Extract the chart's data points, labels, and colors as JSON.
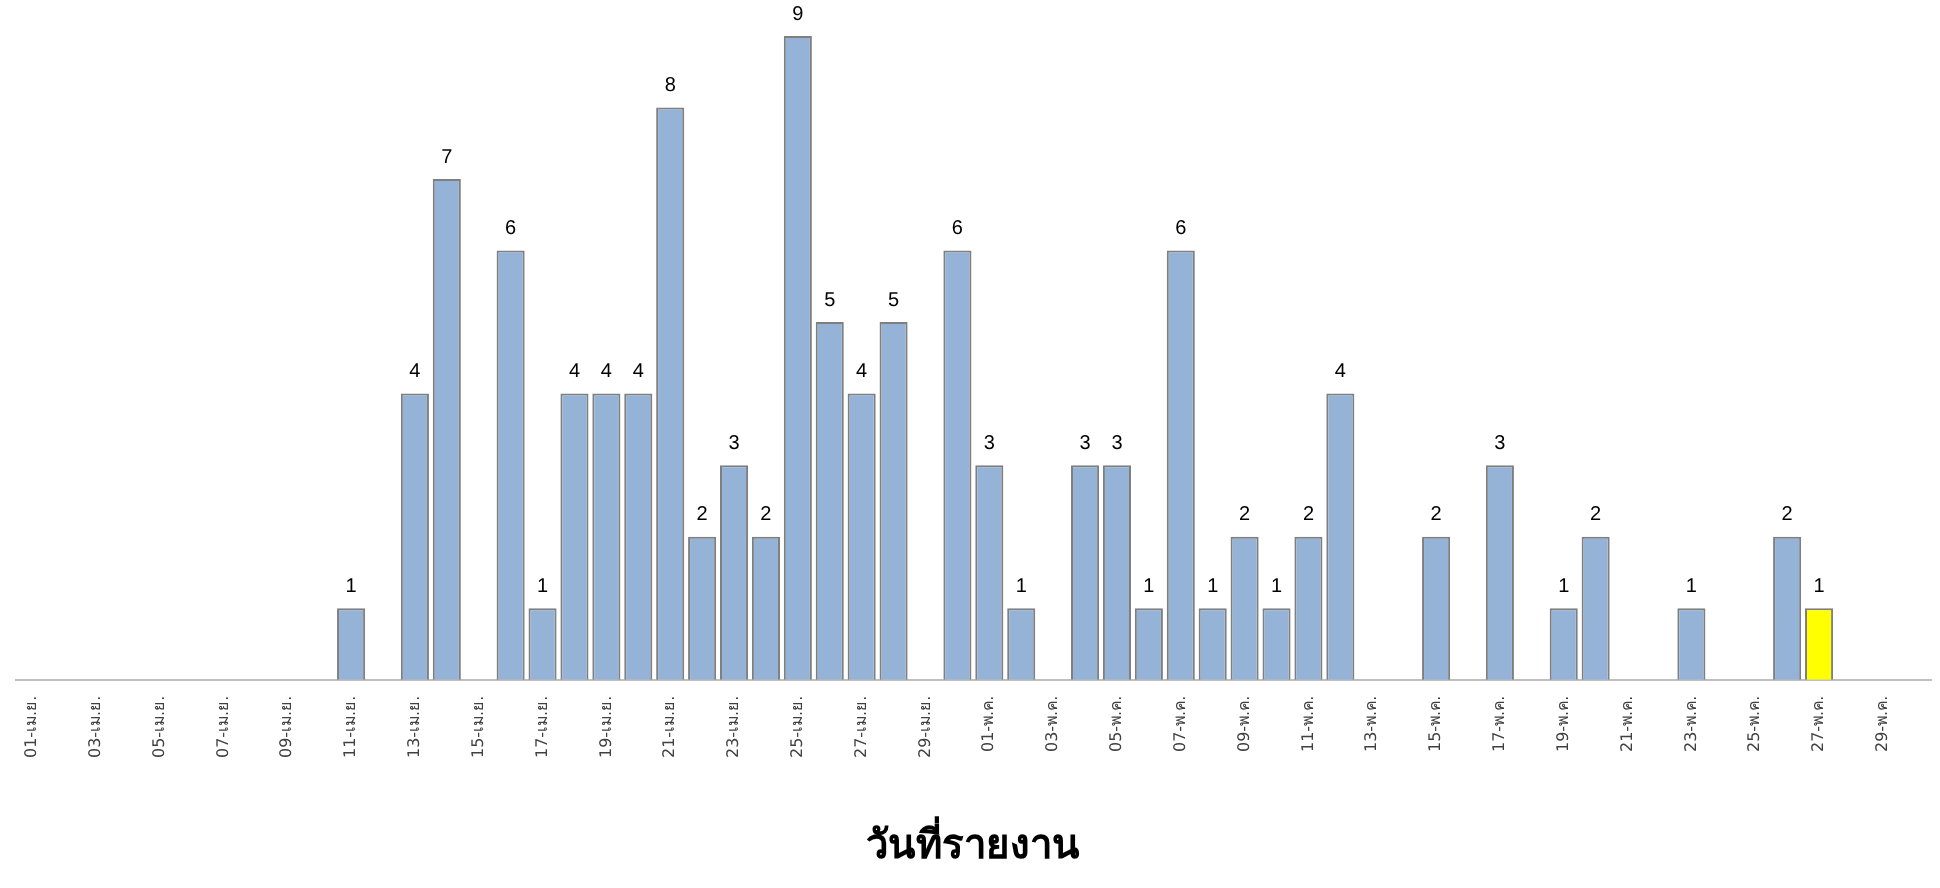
{
  "chart_data": {
    "type": "bar",
    "xlabel": "วันที่รายงาน",
    "categories": [
      "01-เม.ย.",
      null,
      "03-เม.ย.",
      null,
      "05-เม.ย.",
      null,
      "07-เม.ย.",
      null,
      "09-เม.ย.",
      null,
      "11-เม.ย.",
      null,
      "13-เม.ย.",
      null,
      "15-เม.ย.",
      null,
      "17-เม.ย.",
      null,
      "19-เม.ย.",
      null,
      "21-เม.ย.",
      null,
      "23-เม.ย.",
      null,
      "25-เม.ย.",
      null,
      "27-เม.ย.",
      null,
      "29-เม.ย.",
      null,
      "01-พ.ค.",
      null,
      "03-พ.ค.",
      null,
      "05-พ.ค.",
      null,
      "07-พ.ค.",
      null,
      "09-พ.ค.",
      null,
      "11-พ.ค.",
      null,
      "13-พ.ค.",
      null,
      "15-พ.ค.",
      null,
      "17-พ.ค.",
      null,
      "19-พ.ค.",
      null,
      "21-พ.ค.",
      null,
      "23-พ.ค.",
      null,
      "25-พ.ค.",
      null,
      "27-พ.ค.",
      null,
      "29-พ.ค.",
      null
    ],
    "values": [
      0,
      0,
      0,
      0,
      0,
      0,
      0,
      0,
      0,
      0,
      1,
      0,
      4,
      7,
      0,
      6,
      1,
      4,
      4,
      4,
      8,
      2,
      3,
      2,
      9,
      5,
      4,
      5,
      0,
      6,
      3,
      1,
      0,
      3,
      3,
      1,
      6,
      1,
      2,
      1,
      2,
      4,
      0,
      0,
      2,
      0,
      3,
      0,
      1,
      2,
      0,
      0,
      1,
      0,
      0,
      2,
      1,
      0,
      0,
      0
    ],
    "value_labels": [
      null,
      null,
      null,
      null,
      null,
      null,
      null,
      null,
      null,
      null,
      "1",
      null,
      "4",
      "7",
      null,
      "6",
      "1",
      "4",
      "4",
      "4",
      "8",
      "2",
      "3",
      "2",
      "9",
      "5",
      "4",
      "5",
      null,
      "6",
      "3",
      "1",
      null,
      "3",
      "3",
      "1",
      "6",
      "1",
      "2",
      "1",
      "2",
      "4",
      null,
      null,
      "2",
      null,
      "3",
      null,
      "1",
      "2",
      null,
      null,
      "1",
      null,
      null,
      "2",
      "1",
      null,
      null,
      null
    ],
    "colors": [
      "#95b3d7",
      "#95b3d7",
      "#95b3d7",
      "#95b3d7",
      "#95b3d7",
      "#95b3d7",
      "#95b3d7",
      "#95b3d7",
      "#95b3d7",
      "#95b3d7",
      "#95b3d7",
      "#95b3d7",
      "#95b3d7",
      "#95b3d7",
      "#95b3d7",
      "#95b3d7",
      "#95b3d7",
      "#95b3d7",
      "#95b3d7",
      "#95b3d7",
      "#95b3d7",
      "#95b3d7",
      "#95b3d7",
      "#95b3d7",
      "#95b3d7",
      "#95b3d7",
      "#95b3d7",
      "#95b3d7",
      "#95b3d7",
      "#95b3d7",
      "#95b3d7",
      "#95b3d7",
      "#95b3d7",
      "#95b3d7",
      "#95b3d7",
      "#95b3d7",
      "#95b3d7",
      "#95b3d7",
      "#95b3d7",
      "#95b3d7",
      "#95b3d7",
      "#95b3d7",
      "#95b3d7",
      "#95b3d7",
      "#95b3d7",
      "#95b3d7",
      "#95b3d7",
      "#95b3d7",
      "#95b3d7",
      "#95b3d7",
      "#95b3d7",
      "#95b3d7",
      "#95b3d7",
      "#95b3d7",
      "#95b3d7",
      "#95b3d7",
      "#ffff00",
      "#95b3d7",
      "#95b3d7",
      "#95b3d7"
    ],
    "grid": false,
    "legend": false
  }
}
